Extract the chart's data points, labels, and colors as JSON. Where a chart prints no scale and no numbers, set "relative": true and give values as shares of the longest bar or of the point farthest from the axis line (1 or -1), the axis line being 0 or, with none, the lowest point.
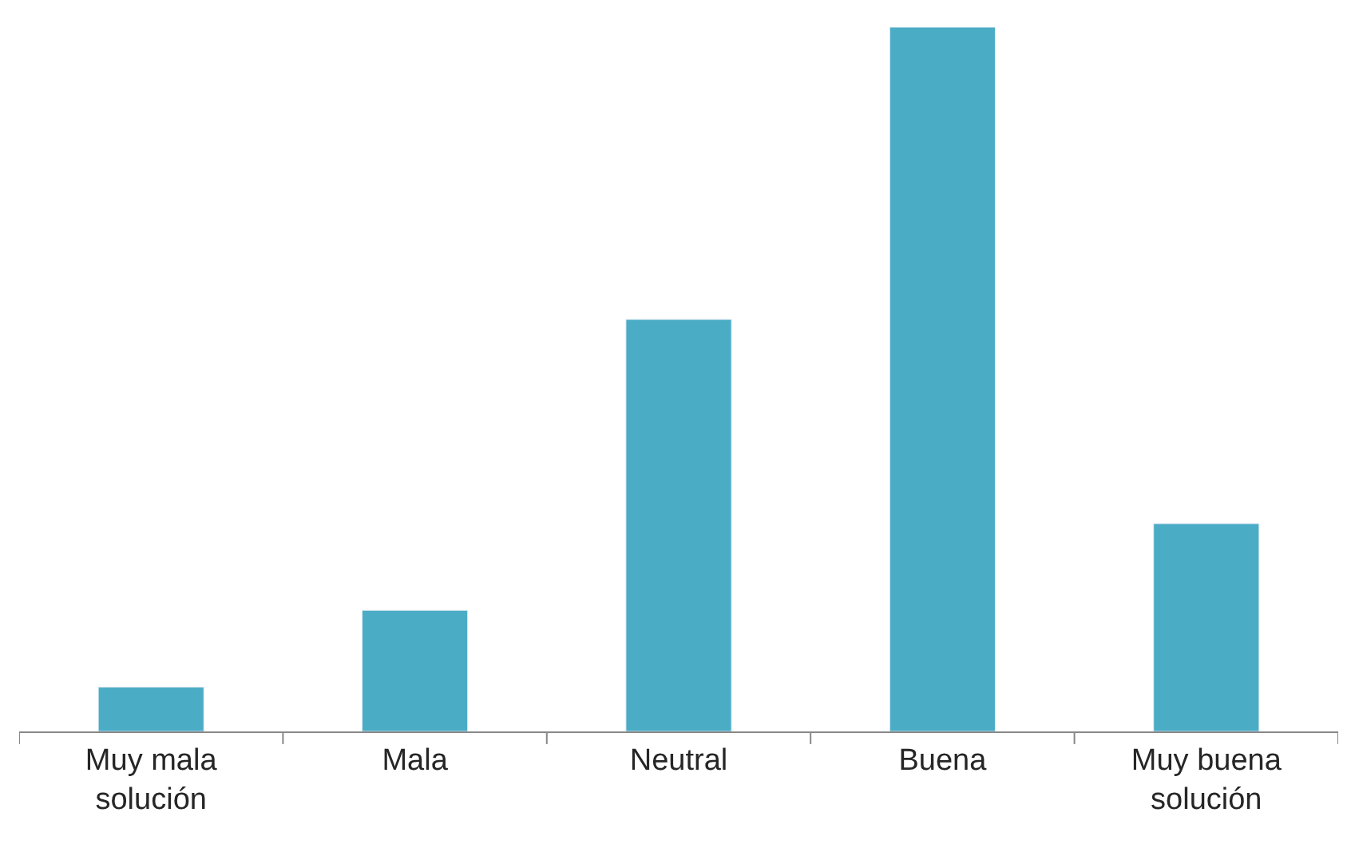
{
  "chart_data": {
    "type": "bar",
    "relative": true,
    "categories": [
      "Muy mala solución",
      "Mala",
      "Neutral",
      "Buena",
      "Muy buena solución"
    ],
    "values": [
      0.063,
      0.172,
      0.585,
      1,
      0.295
    ],
    "color": "#4bacc6",
    "legend": false
  }
}
